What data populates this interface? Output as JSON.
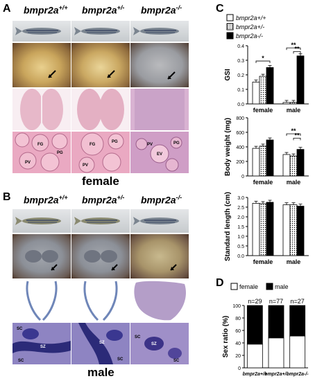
{
  "panels": {
    "A": "A",
    "B": "B",
    "C": "C",
    "D": "D"
  },
  "genotypes": {
    "g1_base": "bmpr2a",
    "g1_sup": "+/+",
    "g2_base": "bmpr2a",
    "g2_sup": "+/-",
    "g3_base": "bmpr2a",
    "g3_sup": "-/-"
  },
  "sex_labels": {
    "female": "female",
    "male": "male"
  },
  "histology_labels": {
    "FG": "FG",
    "PG": "PG",
    "PV": "PV",
    "EV": "EV",
    "SC": "SC",
    "SZ": "SZ"
  },
  "legend": {
    "wt": "bmpr2a+/+",
    "het": "bmpr2a+/-",
    "ko": "bmpr2a-/-",
    "female": "female",
    "male": "male"
  },
  "significance": {
    "single": "*",
    "double": "**"
  },
  "colors": {
    "female_tissue": "#e8a0b8",
    "male_tissue": "#3a2d7a",
    "he_pink": "#e6b3c6",
    "gonad_yellow": "#d8b878",
    "fish_bg": "#c8ccd0"
  },
  "chart_data": [
    {
      "type": "bar",
      "ylabel": "GSI",
      "categories": [
        "female",
        "male"
      ],
      "ylim": [
        0,
        0.4
      ],
      "yticks": [
        "0.0",
        "0.1",
        "0.2",
        "0.3",
        "0.4"
      ],
      "series": [
        {
          "name": "bmpr2a+/+",
          "values": [
            0.15,
            0.01
          ]
        },
        {
          "name": "bmpr2a+/-",
          "values": [
            0.19,
            0.01
          ]
        },
        {
          "name": "bmpr2a-/-",
          "values": [
            0.25,
            0.33
          ]
        }
      ]
    },
    {
      "type": "bar",
      "ylabel": "Body weight (mg)",
      "categories": [
        "female",
        "male"
      ],
      "ylim": [
        0,
        800
      ],
      "yticks": [
        "0",
        "200",
        "400",
        "600",
        "800"
      ],
      "series": [
        {
          "name": "bmpr2a+/+",
          "values": [
            380,
            295
          ]
        },
        {
          "name": "bmpr2a+/-",
          "values": [
            410,
            275
          ]
        },
        {
          "name": "bmpr2a-/-",
          "values": [
            495,
            365
          ]
        }
      ]
    },
    {
      "type": "bar",
      "ylabel": "Standard length (cm)",
      "categories": [
        "female",
        "male"
      ],
      "ylim": [
        0,
        3.0
      ],
      "yticks": [
        "0.0",
        "0.5",
        "1.0",
        "1.5",
        "2.0",
        "2.5",
        "3.0"
      ],
      "series": [
        {
          "name": "bmpr2a+/+",
          "values": [
            2.7,
            2.62
          ]
        },
        {
          "name": "bmpr2a+/-",
          "values": [
            2.68,
            2.62
          ]
        },
        {
          "name": "bmpr2a-/-",
          "values": [
            2.75,
            2.55
          ]
        }
      ]
    },
    {
      "type": "bar",
      "ylabel": "Sex ratio (%)",
      "categories": [
        "bmpr2a+/+",
        "bmpr2a+/-",
        "bmpr2a-/-"
      ],
      "n_labels": [
        "n=29",
        "n=77",
        "n=27"
      ],
      "ylim": [
        0,
        100
      ],
      "yticks": [
        "0",
        "20",
        "40",
        "60",
        "80",
        "100"
      ],
      "series": [
        {
          "name": "female",
          "values": [
            38,
            48,
            51
          ]
        },
        {
          "name": "male",
          "values": [
            62,
            52,
            49
          ]
        }
      ]
    }
  ]
}
